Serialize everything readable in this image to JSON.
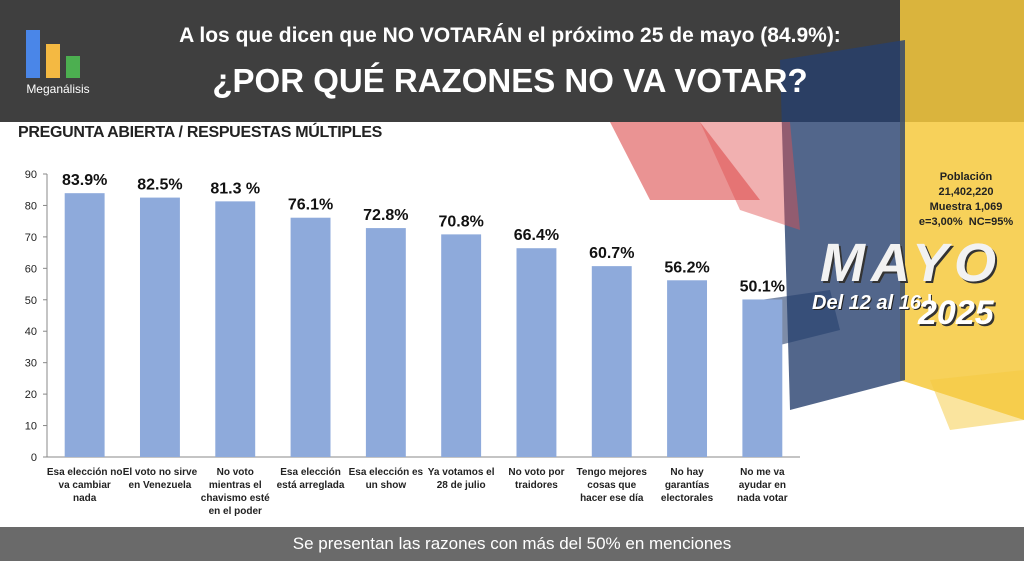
{
  "logo": {
    "name": "Meganálisis",
    "colors": [
      "#4a86e8",
      "#f4b942",
      "#4caf50"
    ]
  },
  "header": {
    "title_top": "A los que dicen que NO VOTARÁN el próximo 25 de mayo (84.9%):",
    "title_main": "¿POR QUÉ RAZONES NO VA VOTAR?"
  },
  "subtitle": "PREGUNTA ABIERTA / RESPUESTAS MÚLTIPLES",
  "population": {
    "label": "Población",
    "value": "21,402,220",
    "sample": "Muestra 1,069",
    "error": "e=3,00%",
    "confidence": "NC=95%"
  },
  "event": {
    "month": "MAYO",
    "dates": "Del 12 al 16 |",
    "year": "2025"
  },
  "footer": "Se presentan las razones con más del 50% en menciones",
  "chart_data": {
    "type": "bar",
    "title": "",
    "xlabel": "",
    "ylabel": "",
    "ylim": [
      0,
      90
    ],
    "yticks": [
      0,
      10,
      20,
      30,
      40,
      50,
      60,
      70,
      80,
      90
    ],
    "grid": false,
    "bar_color": "#8eaadb",
    "categories": [
      [
        "Esa elección no",
        "va cambiar",
        "nada"
      ],
      [
        "El voto no sirve",
        "en Venezuela"
      ],
      [
        "No voto",
        "mientras el",
        "chavismo esté",
        "en el poder"
      ],
      [
        "Esa elección",
        "está arreglada"
      ],
      [
        "Esa elección es",
        "un show"
      ],
      [
        "Ya votamos el",
        "28 de julio"
      ],
      [
        "No voto por",
        "traidores"
      ],
      [
        "Tengo mejores",
        "cosas que",
        "hacer ese día"
      ],
      [
        "No hay",
        "garantías",
        "electorales"
      ],
      [
        "No me va",
        "ayudar en",
        "nada votar"
      ]
    ],
    "values": [
      83.9,
      82.5,
      81.3,
      76.1,
      72.8,
      70.8,
      66.4,
      60.7,
      56.2,
      50.1
    ],
    "data_labels": [
      "83.9%",
      "82.5%",
      "81.3 %",
      "76.1%",
      "72.8%",
      "70.8%",
      "66.4%",
      "60.7%",
      "56.2%",
      "50.1%"
    ]
  }
}
